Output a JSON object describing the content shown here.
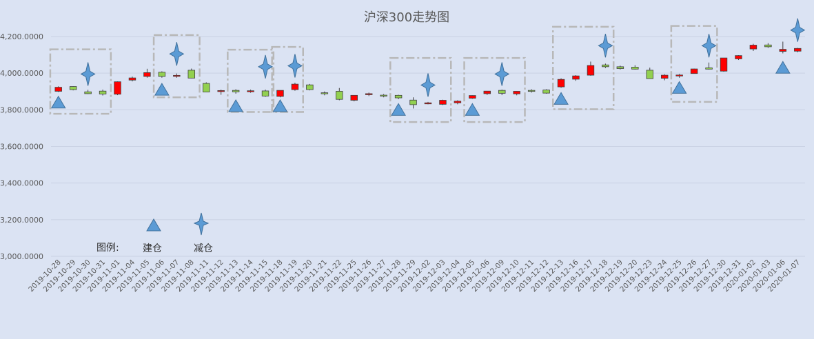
{
  "chart_data": {
    "type": "candlestick",
    "title": "沪深300走势图",
    "ylim": [
      3000,
      4200
    ],
    "y_ticks": [
      "3,000.0000",
      "3,200.0000",
      "3,400.0000",
      "3,600.0000",
      "3,800.0000",
      "4,000.0000",
      "4,200.0000"
    ],
    "y_tick_values": [
      3000,
      3200,
      3400,
      3600,
      3800,
      4000,
      4200
    ],
    "grid": true,
    "categories": [
      "2019-10-28",
      "2019-10-29",
      "2019-10-30",
      "2019-10-31",
      "2019-11-01",
      "2019-11-04",
      "2019-11-05",
      "2019-11-06",
      "2019-11-07",
      "2019-11-08",
      "2019-11-11",
      "2019-11-12",
      "2019-11-13",
      "2019-11-14",
      "2019-11-15",
      "2019-11-18",
      "2019-11-19",
      "2019-11-20",
      "2019-11-21",
      "2019-11-22",
      "2019-11-25",
      "2019-11-26",
      "2019-11-27",
      "2019-11-28",
      "2019-11-29",
      "2019-12-02",
      "2019-12-03",
      "2019-12-04",
      "2019-12-05",
      "2019-12-06",
      "2019-12-09",
      "2019-12-10",
      "2019-12-11",
      "2019-12-12",
      "2019-12-13",
      "2019-12-16",
      "2019-12-17",
      "2019-12-18",
      "2019-12-19",
      "2019-12-20",
      "2019-12-23",
      "2019-12-24",
      "2019-12-25",
      "2019-12-26",
      "2019-12-27",
      "2019-12-30",
      "2019-12-31",
      "2020-01-02",
      "2020-01-03",
      "2020-01-06",
      "2020-01-07"
    ],
    "ohlc": [
      [
        3901,
        3928,
        3897,
        3923
      ],
      [
        3927,
        3928,
        3906,
        3910
      ],
      [
        3898,
        3909,
        3886,
        3888
      ],
      [
        3902,
        3910,
        3878,
        3886
      ],
      [
        3885,
        3955,
        3880,
        3953
      ],
      [
        3962,
        3981,
        3955,
        3974
      ],
      [
        3982,
        4024,
        3975,
        4003
      ],
      [
        4005,
        4010,
        3975,
        3982
      ],
      [
        3983,
        3998,
        3975,
        3988
      ],
      [
        4016,
        4025,
        3972,
        3973
      ],
      [
        3944,
        3950,
        3898,
        3897
      ],
      [
        3901,
        3910,
        3882,
        3905
      ],
      [
        3906,
        3912,
        3888,
        3898
      ],
      [
        3902,
        3910,
        3893,
        3904
      ],
      [
        3903,
        3910,
        3871,
        3875
      ],
      [
        3873,
        3902,
        3868,
        3906
      ],
      [
        3910,
        3948,
        3904,
        3940
      ],
      [
        3936,
        3941,
        3906,
        3910
      ],
      [
        3893,
        3900,
        3879,
        3888
      ],
      [
        3901,
        3919,
        3852,
        3857
      ],
      [
        3852,
        3878,
        3846,
        3879
      ],
      [
        3886,
        3894,
        3875,
        3888
      ],
      [
        3880,
        3886,
        3868,
        3875
      ],
      [
        3879,
        3882,
        3858,
        3865
      ],
      [
        3853,
        3868,
        3807,
        3828
      ],
      [
        3836,
        3843,
        3830,
        3838
      ],
      [
        3830,
        3855,
        3826,
        3852
      ],
      [
        3838,
        3852,
        3830,
        3847
      ],
      [
        3863,
        3879,
        3860,
        3878
      ],
      [
        3888,
        3902,
        3881,
        3902
      ],
      [
        3906,
        3910,
        3880,
        3890
      ],
      [
        3887,
        3902,
        3879,
        3901
      ],
      [
        3906,
        3912,
        3894,
        3901
      ],
      [
        3908,
        3912,
        3888,
        3891
      ],
      [
        3925,
        3972,
        3920,
        3966
      ],
      [
        3967,
        3989,
        3958,
        3985
      ],
      [
        3989,
        4063,
        3986,
        4042
      ],
      [
        4045,
        4052,
        4028,
        4035
      ],
      [
        4035,
        4041,
        4020,
        4025
      ],
      [
        4033,
        4043,
        4020,
        4022
      ],
      [
        4016,
        4030,
        3970,
        3970
      ],
      [
        3972,
        3994,
        3961,
        3989
      ],
      [
        3986,
        3996,
        3975,
        3990
      ],
      [
        3998,
        4025,
        3998,
        4023
      ],
      [
        4029,
        4058,
        4020,
        4022
      ],
      [
        4011,
        4083,
        4008,
        4083
      ],
      [
        4078,
        4098,
        4072,
        4096
      ],
      [
        4132,
        4160,
        4121,
        4153
      ],
      [
        4154,
        4164,
        4138,
        4144
      ],
      [
        4119,
        4172,
        4108,
        4130
      ],
      [
        4120,
        4138,
        4114,
        4135
      ]
    ],
    "up_color": "#ff0000",
    "down_color": "#92d050",
    "build_markers": [
      {
        "category": "2019-10-28",
        "y": 3840
      },
      {
        "category": "2019-11-06",
        "y": 3910
      },
      {
        "category": "2019-11-13",
        "y": 3820
      },
      {
        "category": "2019-11-18",
        "y": 3820
      },
      {
        "category": "2019-11-28",
        "y": 3800
      },
      {
        "category": "2019-12-05",
        "y": 3800
      },
      {
        "category": "2019-12-13",
        "y": 3860
      },
      {
        "category": "2019-12-25",
        "y": 3920
      },
      {
        "category": "2020-01-06",
        "y": 4030
      }
    ],
    "reduce_markers": [
      {
        "category": "2019-10-30",
        "y": 3995
      },
      {
        "category": "2019-11-07",
        "y": 4105
      },
      {
        "category": "2019-11-15",
        "y": 4035
      },
      {
        "category": "2019-11-19",
        "y": 4040
      },
      {
        "category": "2019-12-02",
        "y": 3935
      },
      {
        "category": "2019-12-09",
        "y": 3995
      },
      {
        "category": "2019-12-18",
        "y": 4150
      },
      {
        "category": "2019-12-27",
        "y": 4150
      },
      {
        "category": "2020-01-07",
        "y": 4235
      }
    ],
    "highlight_boxes": [
      {
        "from": "2019-10-28",
        "to": "2019-10-31",
        "y_low": 3778,
        "y_high": 4130
      },
      {
        "from": "2019-11-06",
        "to": "2019-11-08",
        "y_low": 3868,
        "y_high": 4208
      },
      {
        "from": "2019-11-13",
        "to": "2019-11-15",
        "y_low": 3788,
        "y_high": 4128
      },
      {
        "from": "2019-11-18",
        "to": "2019-11-19",
        "y_low": 3788,
        "y_high": 4143
      },
      {
        "from": "2019-11-28",
        "to": "2019-12-03",
        "y_low": 3733,
        "y_high": 4083
      },
      {
        "from": "2019-12-05",
        "to": "2019-12-10",
        "y_low": 3733,
        "y_high": 4083
      },
      {
        "from": "2019-12-13",
        "to": "2019-12-18",
        "y_low": 3803,
        "y_high": 4253
      },
      {
        "from": "2019-12-25",
        "to": "2019-12-27",
        "y_low": 3843,
        "y_high": 4258
      }
    ],
    "legend": {
      "title": "图例:",
      "build_label": "建仓",
      "reduce_label": "减仓",
      "marker_color": "#5b9bd5"
    }
  }
}
